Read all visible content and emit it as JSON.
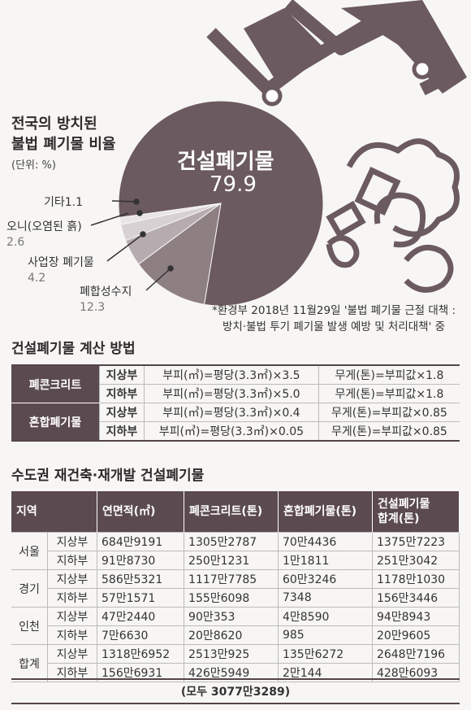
{
  "chart_data": {
    "type": "pie",
    "title": "전국의 방치된\n불법 폐기물 비율",
    "unit_note": "(단위: %)",
    "slices": [
      {
        "name": "건설폐기물",
        "value": 79.9,
        "color": "#6b5a5f"
      },
      {
        "name": "폐합성수지",
        "value": 12.3,
        "color": "#8e7f83"
      },
      {
        "name": "사업장 폐기물",
        "value": 4.2,
        "color": "#b6abae"
      },
      {
        "name": "오니(오염된 흙)",
        "value": 2.6,
        "color": "#d8d1d3"
      },
      {
        "name": "기타",
        "value": 1.1,
        "color": "#e9e5e6"
      }
    ],
    "labels": {
      "big_label": "건설폐기물",
      "big_value": "79.9",
      "etc": "기타1.1",
      "sludge": "오니(오염된 흙)",
      "sludge_val": "2.6",
      "business": "사업장 폐기물",
      "business_val": "4.2",
      "plastic": "폐합성수지",
      "plastic_val": "12.3"
    }
  },
  "title_line1": "전국의 방치된",
  "title_line2": "불법 폐기물 비율",
  "unit": "(단위: %)",
  "source_line1": "*환경부 2018년 11월29일 '불법 폐기물 근절 대책 :",
  "source_line2": "방치·불법 투기 폐기물 발생 예방 및 처리대책' 중",
  "calc": {
    "title": "건설폐기물 계산 방법",
    "rows": [
      {
        "cat": "폐콘크리트",
        "sub": "지상부",
        "vol": "부피(㎥)=평당(3.3㎡)×3.5",
        "wt": "무게(톤)=부피값×1.8"
      },
      {
        "cat": "",
        "sub": "지하부",
        "vol": "부피(㎥)=평당(3.3㎡)×5.0",
        "wt": "무게(톤)=부피값×1.8"
      },
      {
        "cat": "혼합폐기물",
        "sub": "지상부",
        "vol": "부피(㎥)=평당(3.3㎡)×0.4",
        "wt": "무게(톤)=부피값×0.85"
      },
      {
        "cat": "",
        "sub": "지하부",
        "vol": "부피(㎥)=평당(3.3㎡)×0.05",
        "wt": "무게(톤)=부피값×0.85"
      }
    ]
  },
  "metro": {
    "title": "수도권 재건축·재개발 건설폐기물",
    "headers": [
      "지역",
      "연면적(㎡)",
      "폐콘크리트(톤)",
      "혼합폐기물(톤)",
      "건설폐기물\n합계(톤)"
    ],
    "rows": [
      {
        "region": "서울",
        "sub": "지상부",
        "area": "684만9191",
        "concrete": "1305만2787",
        "mixed": "70만4436",
        "total": "1375만7223"
      },
      {
        "region": "",
        "sub": "지하부",
        "area": "91만8730",
        "concrete": "250만1231",
        "mixed": "1만1811",
        "total": "251만3042"
      },
      {
        "region": "경기",
        "sub": "지상부",
        "area": "586만5321",
        "concrete": "1117만7785",
        "mixed": "60만3246",
        "total": "1178만1030"
      },
      {
        "region": "",
        "sub": "지하부",
        "area": "57만1571",
        "concrete": "155만6098",
        "mixed": "7348",
        "total": "156만3446"
      },
      {
        "region": "인천",
        "sub": "지상부",
        "area": "47만2440",
        "concrete": "90만353",
        "mixed": "4만8590",
        "total": "94만8943"
      },
      {
        "region": "",
        "sub": "지하부",
        "area": "7만6630",
        "concrete": "20만8620",
        "mixed": "985",
        "total": "20만9605"
      },
      {
        "region": "합계",
        "sub": "지상부",
        "area": "1318만6952",
        "concrete": "2513만925",
        "mixed": "135만6272",
        "total": "2648만7196"
      },
      {
        "region": "",
        "sub": "지하부",
        "area": "156만6931",
        "concrete": "426만5949",
        "mixed": "2만144",
        "total": "428만6093"
      }
    ],
    "total": "(모두 3077만3289)"
  }
}
